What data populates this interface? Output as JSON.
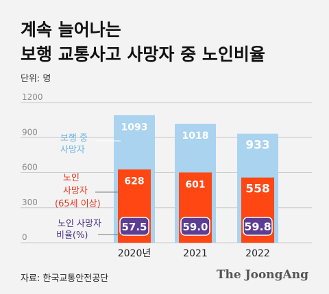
{
  "title_line1": "계속 늘어나는",
  "title_line2": "보행 교통사고 사망자 중 노인비율",
  "unit_label": "단위: 명",
  "source": "자료: 한국교통안전공단",
  "brand": "The JoongAng",
  "colors": {
    "total": "#a9d3ee",
    "elderly": "#ff4713",
    "ratio": "#5b3d94",
    "total_label": "#6ab4e6",
    "elderly_label": "#e8351c",
    "ratio_label": "#4a3486"
  },
  "chart_data": {
    "type": "bar",
    "categories": [
      "2020년",
      "2021",
      "2022"
    ],
    "ylim": [
      0,
      1200
    ],
    "yticks": [
      0,
      300,
      600,
      900,
      1200
    ],
    "grid": true,
    "series": [
      {
        "name": "보행 중 사망자",
        "values": [
          1093,
          1018,
          933
        ],
        "labels": [
          "1093",
          "1018",
          "933"
        ]
      },
      {
        "name": "노인 사망자 (65세 이상)",
        "values": [
          628,
          601,
          558
        ],
        "labels": [
          "628",
          "601",
          "558"
        ]
      },
      {
        "name": "노인 사망자 비율(%)",
        "values": [
          57.5,
          59.0,
          59.8
        ],
        "labels": [
          "57.5",
          "59.0",
          "59.8"
        ]
      }
    ],
    "legend": {
      "total": [
        "보행 중",
        "사망자"
      ],
      "elderly": [
        "노인",
        "사망자",
        "(65세 이상)"
      ],
      "ratio": [
        "노인 사망자",
        "비율(%)"
      ]
    }
  }
}
